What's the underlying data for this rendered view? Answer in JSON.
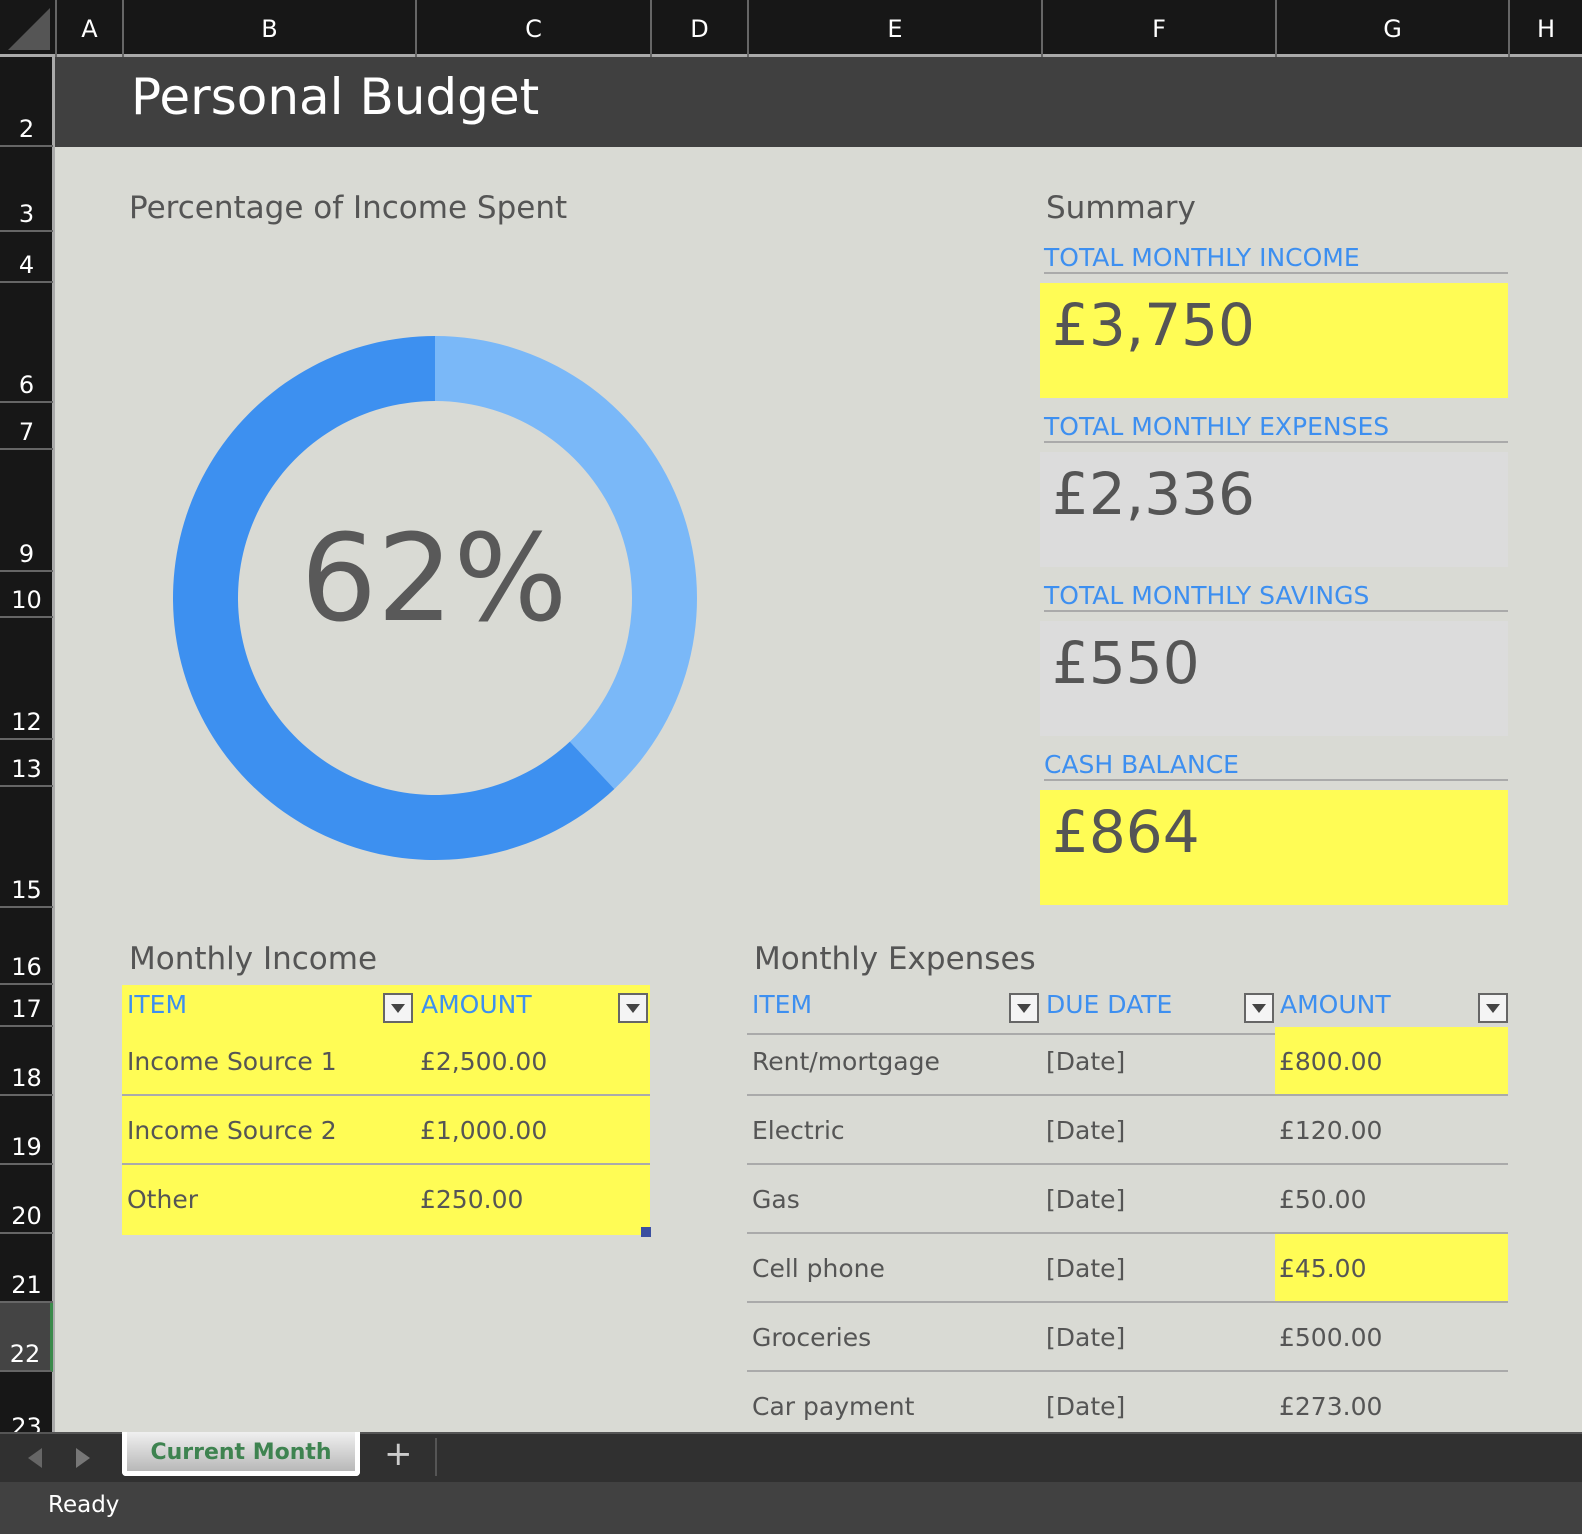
{
  "columns": [
    "A",
    "B",
    "C",
    "D",
    "E",
    "F",
    "G",
    "H"
  ],
  "rows": [
    "2",
    "3",
    "4",
    "6",
    "7",
    "9",
    "10",
    "12",
    "13",
    "15",
    "16",
    "17",
    "18",
    "19",
    "20",
    "21",
    "22",
    "23"
  ],
  "title": "Personal Budget",
  "chart_data": {
    "type": "pie",
    "title": "Percentage of Income Spent",
    "center_label": "62%",
    "values": [
      38,
      62
    ],
    "colors": [
      "#7ab8f8",
      "#3d90f0"
    ]
  },
  "summary": {
    "heading": "Summary",
    "items": [
      {
        "label": "TOTAL MONTHLY INCOME",
        "value": "£3,750",
        "highlight": true
      },
      {
        "label": "TOTAL MONTHLY EXPENSES",
        "value": "£2,336",
        "highlight": false
      },
      {
        "label": "TOTAL MONTHLY SAVINGS",
        "value": "£550",
        "highlight": false
      },
      {
        "label": "CASH BALANCE",
        "value": "£864",
        "highlight": true
      }
    ]
  },
  "income": {
    "heading": "Monthly Income",
    "headers": [
      "ITEM",
      "AMOUNT"
    ],
    "rows": [
      [
        "Income Source 1",
        "£2,500.00"
      ],
      [
        "Income Source 2",
        "£1,000.00"
      ],
      [
        "Other",
        "£250.00"
      ]
    ]
  },
  "expenses": {
    "heading": "Monthly Expenses",
    "headers": [
      "ITEM",
      "DUE DATE",
      "AMOUNT"
    ],
    "rows": [
      {
        "item": "Rent/mortgage",
        "date": "[Date]",
        "amount": "£800.00",
        "highlight": true
      },
      {
        "item": "Electric",
        "date": "[Date]",
        "amount": "£120.00",
        "highlight": false
      },
      {
        "item": "Gas",
        "date": "[Date]",
        "amount": "£50.00",
        "highlight": false
      },
      {
        "item": "Cell phone",
        "date": "[Date]",
        "amount": "£45.00",
        "highlight": true
      },
      {
        "item": "Groceries",
        "date": "[Date]",
        "amount": "£500.00",
        "highlight": false
      },
      {
        "item": "Car payment",
        "date": "[Date]",
        "amount": "£273.00",
        "highlight": false
      }
    ]
  },
  "sheet_tab": "Current Month",
  "add_sheet": "+",
  "status": "Ready"
}
